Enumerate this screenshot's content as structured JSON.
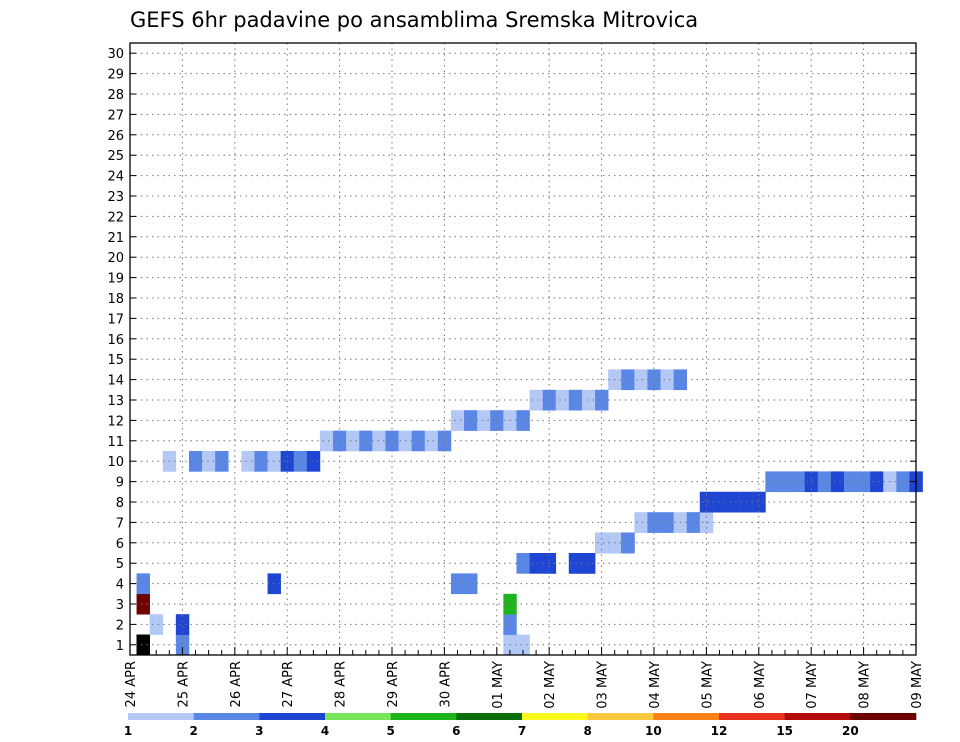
{
  "chart_data": {
    "type": "heatmap",
    "title": "GEFS 6hr padavine po ansamblima Sremska Mitrovica",
    "y_ticks": [
      "1",
      "2",
      "3",
      "4",
      "5",
      "6",
      "7",
      "8",
      "9",
      "10",
      "11",
      "12",
      "13",
      "14",
      "15",
      "16",
      "17",
      "18",
      "19",
      "20",
      "21",
      "22",
      "23",
      "24",
      "25",
      "26",
      "27",
      "28",
      "29",
      "30"
    ],
    "x_ticks": [
      "24 APR",
      "25 APR",
      "26 APR",
      "27 APR",
      "28 APR",
      "29 APR",
      "30 APR",
      "01 MAY",
      "02 MAY",
      "03 MAY",
      "04 MAY",
      "05 MAY",
      "06 MAY",
      "07 MAY",
      "08 MAY",
      "09 MAY"
    ],
    "xlim": [
      0,
      60
    ],
    "ylim": [
      0.5,
      30.5
    ],
    "grid": true,
    "colorbar": {
      "labels": [
        "1",
        "2",
        "3",
        "4",
        "5",
        "6",
        "7",
        "8",
        "10",
        "12",
        "15",
        "20"
      ],
      "colors": [
        "#b4c8f5",
        "#5a87e6",
        "#1e46d2",
        "#78e65a",
        "#1eb41e",
        "#0a6e0a",
        "#fafa1e",
        "#fac83c",
        "#fa8214",
        "#e6321e",
        "#b40a0a",
        "#6e0000"
      ]
    },
    "colors": [
      "#ffffff",
      "#b4c8f5",
      "#5a87e6",
      "#1e46d2",
      "#78e65a",
      "#1eb41e",
      "#0a6e0a",
      "#fafa1e",
      "#fac83c",
      "#fa8214",
      "#e6321e",
      "#b40a0a",
      "#6e0000"
    ],
    "cells": [
      [
        1,
        1,
        1
      ],
      [
        1,
        1,
        29
      ],
      [
        1,
        1,
        30
      ],
      [
        1,
        2,
        4
      ],
      [
        1,
        3,
        1
      ],
      [
        1,
        37,
        1
      ],
      [
        1,
        59,
        1
      ],
      [
        2,
        1,
        2
      ],
      [
        2,
        2,
        29
      ],
      [
        2,
        3,
        4
      ],
      [
        3,
        5,
        29
      ],
      [
        3,
        12,
        1
      ],
      [
        4,
        2,
        1
      ],
      [
        4,
        2,
        26
      ],
      [
        4,
        2,
        25
      ],
      [
        4,
        3,
        11
      ],
      [
        5,
        2,
        30
      ],
      [
        5,
        3,
        31
      ],
      [
        5,
        2,
        32
      ],
      [
        5,
        3,
        32
      ],
      [
        5,
        2,
        34
      ],
      [
        5,
        3,
        34
      ],
      [
        5,
        2,
        35
      ],
      [
        5,
        3,
        35
      ],
      [
        6,
        2,
        36
      ],
      [
        6,
        1,
        36
      ],
      [
        6,
        2,
        37
      ],
      [
        6,
        1,
        37
      ],
      [
        6,
        3,
        38
      ],
      [
        6,
        2,
        38
      ],
      [
        7,
        1,
        39
      ],
      [
        7,
        2,
        40
      ],
      [
        7,
        2,
        41
      ],
      [
        7,
        1,
        42
      ],
      [
        7,
        1,
        43
      ],
      [
        7,
        2,
        43
      ],
      [
        7,
        1,
        44
      ],
      [
        8,
        2,
        44
      ],
      [
        8,
        3,
        44
      ],
      [
        8,
        2,
        45
      ],
      [
        8,
        3,
        45
      ],
      [
        8,
        2,
        46
      ],
      [
        8,
        3,
        46
      ],
      [
        8,
        2,
        47
      ],
      [
        8,
        3,
        47
      ],
      [
        8,
        2,
        48
      ],
      [
        8,
        3,
        48
      ],
      [
        9,
        2,
        49
      ],
      [
        9,
        2,
        50
      ],
      [
        9,
        2,
        51
      ],
      [
        9,
        3,
        52
      ],
      [
        9,
        2,
        53
      ],
      [
        9,
        3,
        54
      ],
      [
        9,
        2,
        55
      ],
      [
        9,
        2,
        56
      ],
      [
        9,
        3,
        57
      ],
      [
        9,
        1,
        58
      ],
      [
        9,
        2,
        59
      ],
      [
        9,
        3,
        60
      ],
      [
        10,
        1,
        3
      ],
      [
        10,
        2,
        5
      ],
      [
        10,
        1,
        6
      ],
      [
        10,
        2,
        7
      ],
      [
        10,
        1,
        9
      ],
      [
        10,
        2,
        10
      ],
      [
        10,
        1,
        11
      ],
      [
        10,
        3,
        12
      ],
      [
        10,
        2,
        13
      ],
      [
        10,
        3,
        14
      ],
      [
        11,
        1,
        15
      ],
      [
        11,
        2,
        16
      ],
      [
        11,
        1,
        17
      ],
      [
        11,
        2,
        18
      ],
      [
        11,
        1,
        19
      ],
      [
        11,
        2,
        20
      ],
      [
        11,
        1,
        21
      ],
      [
        11,
        2,
        22
      ],
      [
        11,
        1,
        23
      ],
      [
        11,
        2,
        24
      ],
      [
        12,
        1,
        25
      ],
      [
        12,
        2,
        26
      ],
      [
        12,
        1,
        27
      ],
      [
        12,
        2,
        28
      ],
      [
        12,
        1,
        29
      ],
      [
        12,
        2,
        30
      ],
      [
        13,
        1,
        31
      ],
      [
        13,
        2,
        32
      ],
      [
        13,
        1,
        33
      ],
      [
        13,
        2,
        34
      ],
      [
        13,
        1,
        35
      ],
      [
        13,
        2,
        36
      ],
      [
        14,
        1,
        37
      ],
      [
        14,
        2,
        38
      ],
      [
        14,
        1,
        39
      ],
      [
        14,
        2,
        40
      ],
      [
        14,
        1,
        41
      ],
      [
        14,
        2,
        42
      ]
    ]
  }
}
